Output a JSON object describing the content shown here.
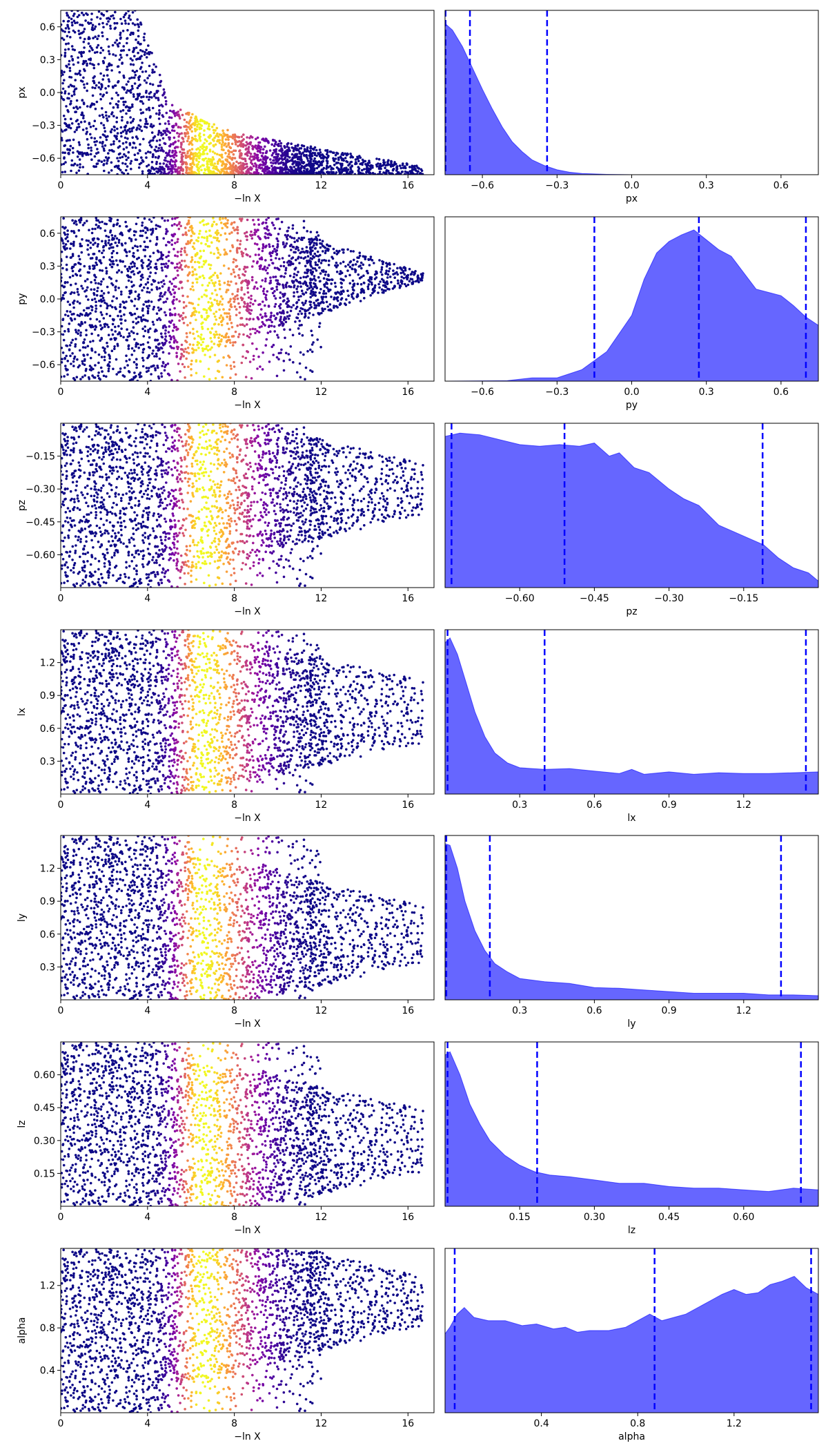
{
  "chart_data": [
    {
      "type": "scatter",
      "param": "px",
      "xlabel": "−ln X",
      "ylabel": "px",
      "xlim": [
        0,
        17.2
      ],
      "ylim": [
        -0.75,
        0.75
      ],
      "xticks": [
        0,
        4,
        8,
        12,
        16
      ],
      "xtick_labels": [
        "0",
        "4",
        "8",
        "12",
        "16"
      ],
      "yticks": [
        0.6,
        0.3,
        0.0,
        -0.3,
        -0.6
      ],
      "ytick_labels": [
        "0.6",
        "0.3",
        "0.0",
        "−0.3",
        "−0.6"
      ],
      "colormap": "plasma",
      "trend": [
        [
          0,
          0.75
        ],
        [
          1.5,
          0.75
        ],
        [
          3.5,
          0.73
        ],
        [
          4.0,
          0.35
        ],
        [
          5.0,
          0.0
        ],
        [
          6.0,
          -0.3
        ],
        [
          8.0,
          -0.38
        ],
        [
          12.0,
          -0.52
        ],
        [
          14.0,
          -0.6
        ],
        [
          16.0,
          -0.62
        ]
      ]
    },
    {
      "type": "area",
      "param": "px",
      "xlabel": "px",
      "xlim": [
        -0.75,
        0.75
      ],
      "xticks": [
        -0.6,
        -0.3,
        0.0,
        0.3,
        0.6
      ],
      "xtick_labels": [
        "−0.6",
        "−0.3",
        "0.0",
        "0.3",
        "0.6"
      ],
      "quantile_lines": [
        -0.748,
        -0.65,
        -0.34
      ],
      "kde": [
        [
          -0.75,
          0.92
        ],
        [
          -0.72,
          0.88
        ],
        [
          -0.68,
          0.78
        ],
        [
          -0.64,
          0.65
        ],
        [
          -0.6,
          0.52
        ],
        [
          -0.56,
          0.4
        ],
        [
          -0.52,
          0.29
        ],
        [
          -0.48,
          0.2
        ],
        [
          -0.44,
          0.14
        ],
        [
          -0.4,
          0.09
        ],
        [
          -0.35,
          0.055
        ],
        [
          -0.3,
          0.03
        ],
        [
          -0.25,
          0.015
        ],
        [
          -0.2,
          0.007
        ],
        [
          -0.1,
          0.002
        ],
        [
          0.0,
          0.0
        ],
        [
          0.75,
          0.0
        ]
      ]
    },
    {
      "type": "scatter",
      "param": "py",
      "xlabel": "−ln X",
      "ylabel": "py",
      "xlim": [
        0,
        17.2
      ],
      "ylim": [
        -0.75,
        0.75
      ],
      "xticks": [
        0,
        4,
        8,
        12,
        16
      ],
      "xtick_labels": [
        "0",
        "4",
        "8",
        "12",
        "16"
      ],
      "yticks": [
        0.6,
        0.3,
        0.0,
        -0.3,
        -0.6
      ],
      "ytick_labels": [
        "0.6",
        "0.3",
        "0.0",
        "−0.3",
        "−0.6"
      ],
      "colormap": "plasma",
      "center": 0.2,
      "spread_end": 0.15
    },
    {
      "type": "area",
      "param": "py",
      "xlabel": "py",
      "xlim": [
        -0.75,
        0.75
      ],
      "xticks": [
        -0.6,
        -0.3,
        0.0,
        0.3,
        0.6
      ],
      "xtick_labels": [
        "−0.6",
        "−0.3",
        "0.0",
        "0.3",
        "0.6"
      ],
      "quantile_lines": [
        -0.15,
        0.27,
        0.7
      ],
      "kde": [
        [
          -0.75,
          0.0
        ],
        [
          -0.5,
          0.003
        ],
        [
          -0.4,
          0.02
        ],
        [
          -0.3,
          0.02
        ],
        [
          -0.2,
          0.07
        ],
        [
          -0.1,
          0.18
        ],
        [
          0.0,
          0.4
        ],
        [
          0.05,
          0.62
        ],
        [
          0.1,
          0.78
        ],
        [
          0.15,
          0.85
        ],
        [
          0.2,
          0.89
        ],
        [
          0.25,
          0.92
        ],
        [
          0.3,
          0.86
        ],
        [
          0.35,
          0.8
        ],
        [
          0.4,
          0.76
        ],
        [
          0.45,
          0.66
        ],
        [
          0.5,
          0.56
        ],
        [
          0.55,
          0.54
        ],
        [
          0.6,
          0.52
        ],
        [
          0.65,
          0.46
        ],
        [
          0.7,
          0.39
        ],
        [
          0.75,
          0.34
        ]
      ]
    },
    {
      "type": "scatter",
      "param": "pz",
      "xlabel": "−ln X",
      "ylabel": "pz",
      "xlim": [
        0,
        17.2
      ],
      "ylim": [
        -0.75,
        0.0
      ],
      "xticks": [
        0,
        4,
        8,
        12,
        16
      ],
      "xtick_labels": [
        "0",
        "4",
        "8",
        "12",
        "16"
      ],
      "yticks": [
        -0.15,
        -0.3,
        -0.45,
        -0.6
      ],
      "ytick_labels": [
        "−0.15",
        "−0.30",
        "−0.45",
        "−0.60"
      ],
      "colormap": "plasma",
      "center": -0.3,
      "spread_end": 0.25
    },
    {
      "type": "area",
      "param": "pz",
      "xlabel": "pz",
      "xlim": [
        -0.75,
        0.0
      ],
      "xticks": [
        -0.6,
        -0.45,
        -0.3,
        -0.15
      ],
      "xtick_labels": [
        "−0.60",
        "−0.45",
        "−0.30",
        "−0.15"
      ],
      "quantile_lines": [
        -0.737,
        -0.51,
        -0.112
      ],
      "kde": [
        [
          -0.75,
          0.92
        ],
        [
          -0.72,
          0.94
        ],
        [
          -0.68,
          0.93
        ],
        [
          -0.64,
          0.9
        ],
        [
          -0.6,
          0.87
        ],
        [
          -0.56,
          0.86
        ],
        [
          -0.52,
          0.87
        ],
        [
          -0.48,
          0.86
        ],
        [
          -0.45,
          0.88
        ],
        [
          -0.42,
          0.8
        ],
        [
          -0.4,
          0.82
        ],
        [
          -0.37,
          0.73
        ],
        [
          -0.34,
          0.7
        ],
        [
          -0.3,
          0.6
        ],
        [
          -0.27,
          0.54
        ],
        [
          -0.24,
          0.5
        ],
        [
          -0.2,
          0.38
        ],
        [
          -0.17,
          0.34
        ],
        [
          -0.14,
          0.3
        ],
        [
          -0.11,
          0.26
        ],
        [
          -0.08,
          0.18
        ],
        [
          -0.05,
          0.12
        ],
        [
          -0.02,
          0.09
        ],
        [
          0.0,
          0.04
        ]
      ]
    },
    {
      "type": "scatter",
      "param": "lx",
      "xlabel": "−ln X",
      "ylabel": "lx",
      "xlim": [
        0,
        17.2
      ],
      "ylim": [
        0.0,
        1.5
      ],
      "xticks": [
        0,
        4,
        8,
        12,
        16
      ],
      "xtick_labels": [
        "0",
        "4",
        "8",
        "12",
        "16"
      ],
      "yticks": [
        1.2,
        0.9,
        0.6,
        0.3
      ],
      "ytick_labels": [
        "1.2",
        "0.9",
        "0.6",
        "0.3"
      ],
      "colormap": "plasma",
      "center": 0.75,
      "spread_end": 0.6
    },
    {
      "type": "area",
      "param": "lx",
      "xlabel": "lx",
      "xlim": [
        0.0,
        1.5
      ],
      "xticks": [
        0.3,
        0.6,
        0.9,
        1.2
      ],
      "xtick_labels": [
        "0.3",
        "0.6",
        "0.9",
        "1.2"
      ],
      "quantile_lines": [
        0.01,
        0.4,
        1.45
      ],
      "kde": [
        [
          0.0,
          0.92
        ],
        [
          0.02,
          0.95
        ],
        [
          0.05,
          0.85
        ],
        [
          0.08,
          0.7
        ],
        [
          0.12,
          0.5
        ],
        [
          0.16,
          0.35
        ],
        [
          0.2,
          0.25
        ],
        [
          0.25,
          0.19
        ],
        [
          0.3,
          0.16
        ],
        [
          0.4,
          0.15
        ],
        [
          0.5,
          0.155
        ],
        [
          0.6,
          0.14
        ],
        [
          0.7,
          0.125
        ],
        [
          0.75,
          0.15
        ],
        [
          0.8,
          0.12
        ],
        [
          0.9,
          0.135
        ],
        [
          1.0,
          0.12
        ],
        [
          1.1,
          0.13
        ],
        [
          1.2,
          0.125
        ],
        [
          1.3,
          0.125
        ],
        [
          1.4,
          0.13
        ],
        [
          1.5,
          0.135
        ]
      ]
    },
    {
      "type": "scatter",
      "param": "ly",
      "xlabel": "−ln X",
      "ylabel": "ly",
      "xlim": [
        0,
        17.2
      ],
      "ylim": [
        0.0,
        1.5
      ],
      "xticks": [
        0,
        4,
        8,
        12,
        16
      ],
      "xtick_labels": [
        "0",
        "4",
        "8",
        "12",
        "16"
      ],
      "yticks": [
        1.2,
        0.9,
        0.6,
        0.3
      ],
      "ytick_labels": [
        "1.2",
        "0.9",
        "0.6",
        "0.3"
      ],
      "colormap": "plasma",
      "center": 0.6,
      "spread_end": 0.55
    },
    {
      "type": "area",
      "param": "ly",
      "xlabel": "ly",
      "xlim": [
        0.0,
        1.5
      ],
      "xticks": [
        0.3,
        0.6,
        0.9,
        1.2
      ],
      "xtick_labels": [
        "0.3",
        "0.6",
        "0.9",
        "1.2"
      ],
      "quantile_lines": [
        0.005,
        0.18,
        1.35
      ],
      "kde": [
        [
          0.0,
          0.95
        ],
        [
          0.02,
          0.94
        ],
        [
          0.05,
          0.8
        ],
        [
          0.08,
          0.6
        ],
        [
          0.12,
          0.42
        ],
        [
          0.16,
          0.3
        ],
        [
          0.2,
          0.22
        ],
        [
          0.25,
          0.17
        ],
        [
          0.3,
          0.13
        ],
        [
          0.4,
          0.11
        ],
        [
          0.5,
          0.1
        ],
        [
          0.6,
          0.075
        ],
        [
          0.7,
          0.07
        ],
        [
          0.8,
          0.06
        ],
        [
          0.9,
          0.05
        ],
        [
          1.0,
          0.04
        ],
        [
          1.1,
          0.04
        ],
        [
          1.2,
          0.04
        ],
        [
          1.3,
          0.03
        ],
        [
          1.4,
          0.03
        ],
        [
          1.5,
          0.025
        ]
      ]
    },
    {
      "type": "scatter",
      "param": "lz",
      "xlabel": "−ln X",
      "ylabel": "lz",
      "xlim": [
        0,
        17.2
      ],
      "ylim": [
        0.0,
        0.75
      ],
      "xticks": [
        0,
        4,
        8,
        12,
        16
      ],
      "xtick_labels": [
        "0",
        "4",
        "8",
        "12",
        "16"
      ],
      "yticks": [
        0.6,
        0.45,
        0.3,
        0.15
      ],
      "ytick_labels": [
        "0.60",
        "0.45",
        "0.30",
        "0.15"
      ],
      "colormap": "plasma",
      "center": 0.3,
      "spread_end": 0.3
    },
    {
      "type": "area",
      "param": "lz",
      "xlabel": "lz",
      "xlim": [
        0.0,
        0.75
      ],
      "xticks": [
        0.15,
        0.3,
        0.45,
        0.6
      ],
      "xtick_labels": [
        "0.15",
        "0.30",
        "0.45",
        "0.60"
      ],
      "quantile_lines": [
        0.005,
        0.185,
        0.715
      ],
      "kde": [
        [
          0.0,
          0.92
        ],
        [
          0.01,
          0.94
        ],
        [
          0.03,
          0.8
        ],
        [
          0.05,
          0.62
        ],
        [
          0.07,
          0.5
        ],
        [
          0.09,
          0.4
        ],
        [
          0.12,
          0.31
        ],
        [
          0.15,
          0.25
        ],
        [
          0.18,
          0.21
        ],
        [
          0.21,
          0.19
        ],
        [
          0.25,
          0.18
        ],
        [
          0.3,
          0.16
        ],
        [
          0.35,
          0.14
        ],
        [
          0.4,
          0.14
        ],
        [
          0.45,
          0.12
        ],
        [
          0.5,
          0.11
        ],
        [
          0.55,
          0.11
        ],
        [
          0.6,
          0.1
        ],
        [
          0.65,
          0.09
        ],
        [
          0.7,
          0.11
        ],
        [
          0.75,
          0.1
        ]
      ]
    },
    {
      "type": "scatter",
      "param": "alpha",
      "xlabel": "−ln X",
      "ylabel": "alpha",
      "xlim": [
        0,
        17.2
      ],
      "ylim": [
        0.0,
        1.55
      ],
      "xticks": [
        0,
        4,
        8,
        12,
        16
      ],
      "xtick_labels": [
        "0",
        "4",
        "8",
        "12",
        "16"
      ],
      "yticks": [
        1.2,
        0.8,
        0.4
      ],
      "ytick_labels": [
        "1.2",
        "0.8",
        "0.4"
      ],
      "colormap": "plasma",
      "center": 1.05,
      "spread_end": 0.5
    },
    {
      "type": "area",
      "param": "alpha",
      "xlabel": "alpha",
      "xlim": [
        0.0,
        1.55
      ],
      "xticks": [
        0.4,
        0.8,
        1.2
      ],
      "xtick_labels": [
        "0.4",
        "0.8",
        "1.2"
      ],
      "quantile_lines": [
        0.04,
        0.87,
        1.52
      ],
      "kde": [
        [
          0.0,
          0.48
        ],
        [
          0.02,
          0.52
        ],
        [
          0.05,
          0.6
        ],
        [
          0.08,
          0.64
        ],
        [
          0.12,
          0.58
        ],
        [
          0.18,
          0.56
        ],
        [
          0.25,
          0.56
        ],
        [
          0.32,
          0.53
        ],
        [
          0.38,
          0.54
        ],
        [
          0.45,
          0.51
        ],
        [
          0.5,
          0.52
        ],
        [
          0.55,
          0.49
        ],
        [
          0.6,
          0.5
        ],
        [
          0.68,
          0.5
        ],
        [
          0.75,
          0.52
        ],
        [
          0.8,
          0.56
        ],
        [
          0.85,
          0.6
        ],
        [
          0.9,
          0.56
        ],
        [
          0.95,
          0.58
        ],
        [
          1.0,
          0.6
        ],
        [
          1.05,
          0.64
        ],
        [
          1.1,
          0.68
        ],
        [
          1.15,
          0.72
        ],
        [
          1.2,
          0.75
        ],
        [
          1.25,
          0.72
        ],
        [
          1.3,
          0.73
        ],
        [
          1.35,
          0.78
        ],
        [
          1.4,
          0.8
        ],
        [
          1.45,
          0.83
        ],
        [
          1.5,
          0.76
        ],
        [
          1.55,
          0.72
        ]
      ]
    }
  ]
}
